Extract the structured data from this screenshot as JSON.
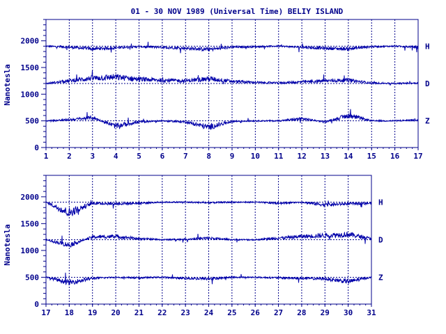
{
  "title": "01 - 30 NOV 1989 (Universal Time) BELIY ISLAND",
  "colors": {
    "ink": "#00008b",
    "trace": "#0000aa",
    "background": "#ffffff"
  },
  "chart_data": [
    {
      "type": "line",
      "ylabel": "Nanotesla",
      "xlim": [
        1,
        17
      ],
      "ylim": [
        0,
        2400
      ],
      "x_ticks": [
        "1",
        "2",
        "3",
        "4",
        "5",
        "6",
        "7",
        "8",
        "9",
        "10",
        "11",
        "12",
        "13",
        "14",
        "15",
        "16",
        "17"
      ],
      "y_ticks": [
        "0",
        "500",
        "1000",
        "1500",
        "2000"
      ],
      "grid": "vertical dashed lines at each day, horizontal dashed baselines at series levels",
      "series": [
        {
          "name": "H",
          "baseline": 1900,
          "values_by_day": [
            1900,
            1880,
            1850,
            1870,
            1890,
            1880,
            1860,
            1840,
            1880,
            1890,
            1900,
            1880,
            1860,
            1850,
            1890,
            1900,
            1880
          ]
        },
        {
          "name": "D",
          "baseline": 1200,
          "values_by_day": [
            1200,
            1250,
            1300,
            1320,
            1280,
            1260,
            1250,
            1290,
            1240,
            1220,
            1210,
            1230,
            1250,
            1260,
            1210,
            1200,
            1210
          ]
        },
        {
          "name": "Z",
          "baseline": 500,
          "values_by_day": [
            500,
            520,
            560,
            400,
            480,
            500,
            480,
            380,
            490,
            500,
            500,
            540,
            480,
            600,
            500,
            500,
            520
          ]
        }
      ]
    },
    {
      "type": "line",
      "ylabel": "Nanotesla",
      "xlim": [
        17,
        31
      ],
      "ylim": [
        0,
        2400
      ],
      "x_ticks": [
        "17",
        "18",
        "19",
        "20",
        "21",
        "22",
        "23",
        "24",
        "25",
        "26",
        "27",
        "28",
        "29",
        "30",
        "31"
      ],
      "y_ticks": [
        "0",
        "500",
        "1000",
        "1500",
        "2000"
      ],
      "grid": "vertical dashed lines at each day, horizontal dashed baselines at series levels",
      "series": [
        {
          "name": "H",
          "baseline": 1900,
          "values_by_day": [
            1900,
            1700,
            1880,
            1870,
            1880,
            1900,
            1900,
            1890,
            1900,
            1900,
            1880,
            1900,
            1850,
            1870,
            1880
          ]
        },
        {
          "name": "D",
          "baseline": 1200,
          "values_by_day": [
            1200,
            1100,
            1250,
            1260,
            1220,
            1200,
            1210,
            1230,
            1200,
            1200,
            1230,
            1260,
            1280,
            1300,
            1220
          ]
        },
        {
          "name": "Z",
          "baseline": 500,
          "values_by_day": [
            500,
            400,
            480,
            500,
            490,
            500,
            480,
            470,
            500,
            500,
            490,
            480,
            470,
            420,
            500
          ]
        }
      ]
    }
  ]
}
